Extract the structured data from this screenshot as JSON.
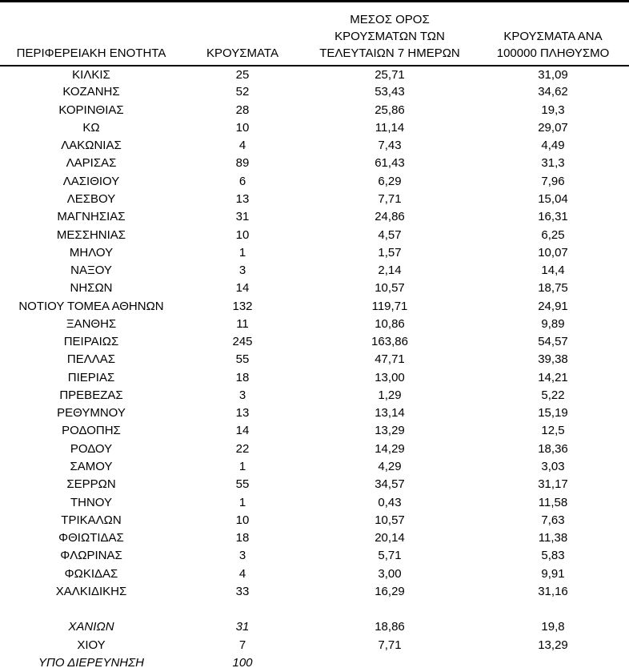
{
  "page": {
    "background_color": "#ffffff",
    "text_color": "#000000",
    "rule_color": "#000000"
  },
  "table": {
    "headers": {
      "region": "ΠΕΡΙΦΕΡΕΙΑΚΗ ΕΝΟΤΗΤΑ",
      "cases": "ΚΡΟΥΣΜΑΤΑ",
      "avg7": "ΜΕΣΟΣ ΟΡΟΣ\nΚΡΟΥΣΜΑΤΩΝ ΤΩΝ\nΤΕΛΕΥΤΑΙΩΝ 7 ΗΜΕΡΩΝ",
      "per100k": "ΚΡΟΥΣΜΑΤΑ ΑΝΑ\n100000 ΠΛΗΘΥΣΜΟ"
    },
    "rows": [
      {
        "region": "ΚΙΛΚΙΣ",
        "cases": "25",
        "avg7": "25,71",
        "per100k": "31,09"
      },
      {
        "region": "ΚΟΖΑΝΗΣ",
        "cases": "52",
        "avg7": "53,43",
        "per100k": "34,62"
      },
      {
        "region": "ΚΟΡΙΝΘΙΑΣ",
        "cases": "28",
        "avg7": "25,86",
        "per100k": "19,3"
      },
      {
        "region": "ΚΩ",
        "cases": "10",
        "avg7": "11,14",
        "per100k": "29,07"
      },
      {
        "region": "ΛΑΚΩΝΙΑΣ",
        "cases": "4",
        "avg7": "7,43",
        "per100k": "4,49"
      },
      {
        "region": "ΛΑΡΙΣΑΣ",
        "cases": "89",
        "avg7": "61,43",
        "per100k": "31,3"
      },
      {
        "region": "ΛΑΣΙΘΙΟΥ",
        "cases": "6",
        "avg7": "6,29",
        "per100k": "7,96"
      },
      {
        "region": "ΛΕΣΒΟΥ",
        "cases": "13",
        "avg7": "7,71",
        "per100k": "15,04"
      },
      {
        "region": "ΜΑΓΝΗΣΙΑΣ",
        "cases": "31",
        "avg7": "24,86",
        "per100k": "16,31"
      },
      {
        "region": "ΜΕΣΣΗΝΙΑΣ",
        "cases": "10",
        "avg7": "4,57",
        "per100k": "6,25"
      },
      {
        "region": "ΜΗΛΟΥ",
        "cases": "1",
        "avg7": "1,57",
        "per100k": "10,07"
      },
      {
        "region": "ΝΑΞΟΥ",
        "cases": "3",
        "avg7": "2,14",
        "per100k": "14,4"
      },
      {
        "region": "ΝΗΣΩΝ",
        "cases": "14",
        "avg7": "10,57",
        "per100k": "18,75"
      },
      {
        "region": "ΝΟΤΙΟΥ ΤΟΜΕΑ ΑΘΗΝΩΝ",
        "cases": "132",
        "avg7": "119,71",
        "per100k": "24,91"
      },
      {
        "region": "ΞΑΝΘΗΣ",
        "cases": "11",
        "avg7": "10,86",
        "per100k": "9,89"
      },
      {
        "region": "ΠΕΙΡΑΙΩΣ",
        "cases": "245",
        "avg7": "163,86",
        "per100k": "54,57"
      },
      {
        "region": "ΠΕΛΛΑΣ",
        "cases": "55",
        "avg7": "47,71",
        "per100k": "39,38"
      },
      {
        "region": "ΠΙΕΡΙΑΣ",
        "cases": "18",
        "avg7": "13,00",
        "per100k": "14,21"
      },
      {
        "region": "ΠΡΕΒΕΖΑΣ",
        "cases": "3",
        "avg7": "1,29",
        "per100k": "5,22"
      },
      {
        "region": "ΡΕΘΥΜΝΟΥ",
        "cases": "13",
        "avg7": "13,14",
        "per100k": "15,19"
      },
      {
        "region": "ΡΟΔΟΠΗΣ",
        "cases": "14",
        "avg7": "13,29",
        "per100k": "12,5"
      },
      {
        "region": "ΡΟΔΟΥ",
        "cases": "22",
        "avg7": "14,29",
        "per100k": "18,36"
      },
      {
        "region": "ΣΑΜΟΥ",
        "cases": "1",
        "avg7": "4,29",
        "per100k": "3,03"
      },
      {
        "region": "ΣΕΡΡΩΝ",
        "cases": "55",
        "avg7": "34,57",
        "per100k": "31,17"
      },
      {
        "region": "ΤΗΝΟΥ",
        "cases": "1",
        "avg7": "0,43",
        "per100k": "11,58"
      },
      {
        "region": "ΤΡΙΚΑΛΩΝ",
        "cases": "10",
        "avg7": "10,57",
        "per100k": "7,63"
      },
      {
        "region": "ΦΘΙΩΤΙΔΑΣ",
        "cases": "18",
        "avg7": "20,14",
        "per100k": "11,38"
      },
      {
        "region": "ΦΛΩΡΙΝΑΣ",
        "cases": "3",
        "avg7": "5,71",
        "per100k": "5,83"
      },
      {
        "region": "ΦΩΚΙΔΑΣ",
        "cases": "4",
        "avg7": "3,00",
        "per100k": "9,91"
      },
      {
        "region": "ΧΑΛΚΙΔΙΚΗΣ",
        "cases": "33",
        "avg7": "16,29",
        "per100k": "31,16"
      },
      {
        "region": "",
        "cases": "",
        "avg7": "",
        "per100k": "",
        "blank": true
      },
      {
        "region": "ΧΑΝΙΩΝ",
        "cases": "31",
        "avg7": "18,86",
        "per100k": "19,8",
        "italic": true
      },
      {
        "region": "ΧΙΟΥ",
        "cases": "7",
        "avg7": "7,71",
        "per100k": "13,29"
      },
      {
        "region": "ΥΠΟ ΔΙΕΡΕΥΝΗΣΗ",
        "cases": "100",
        "avg7": "",
        "per100k": "",
        "italic": true
      }
    ]
  }
}
